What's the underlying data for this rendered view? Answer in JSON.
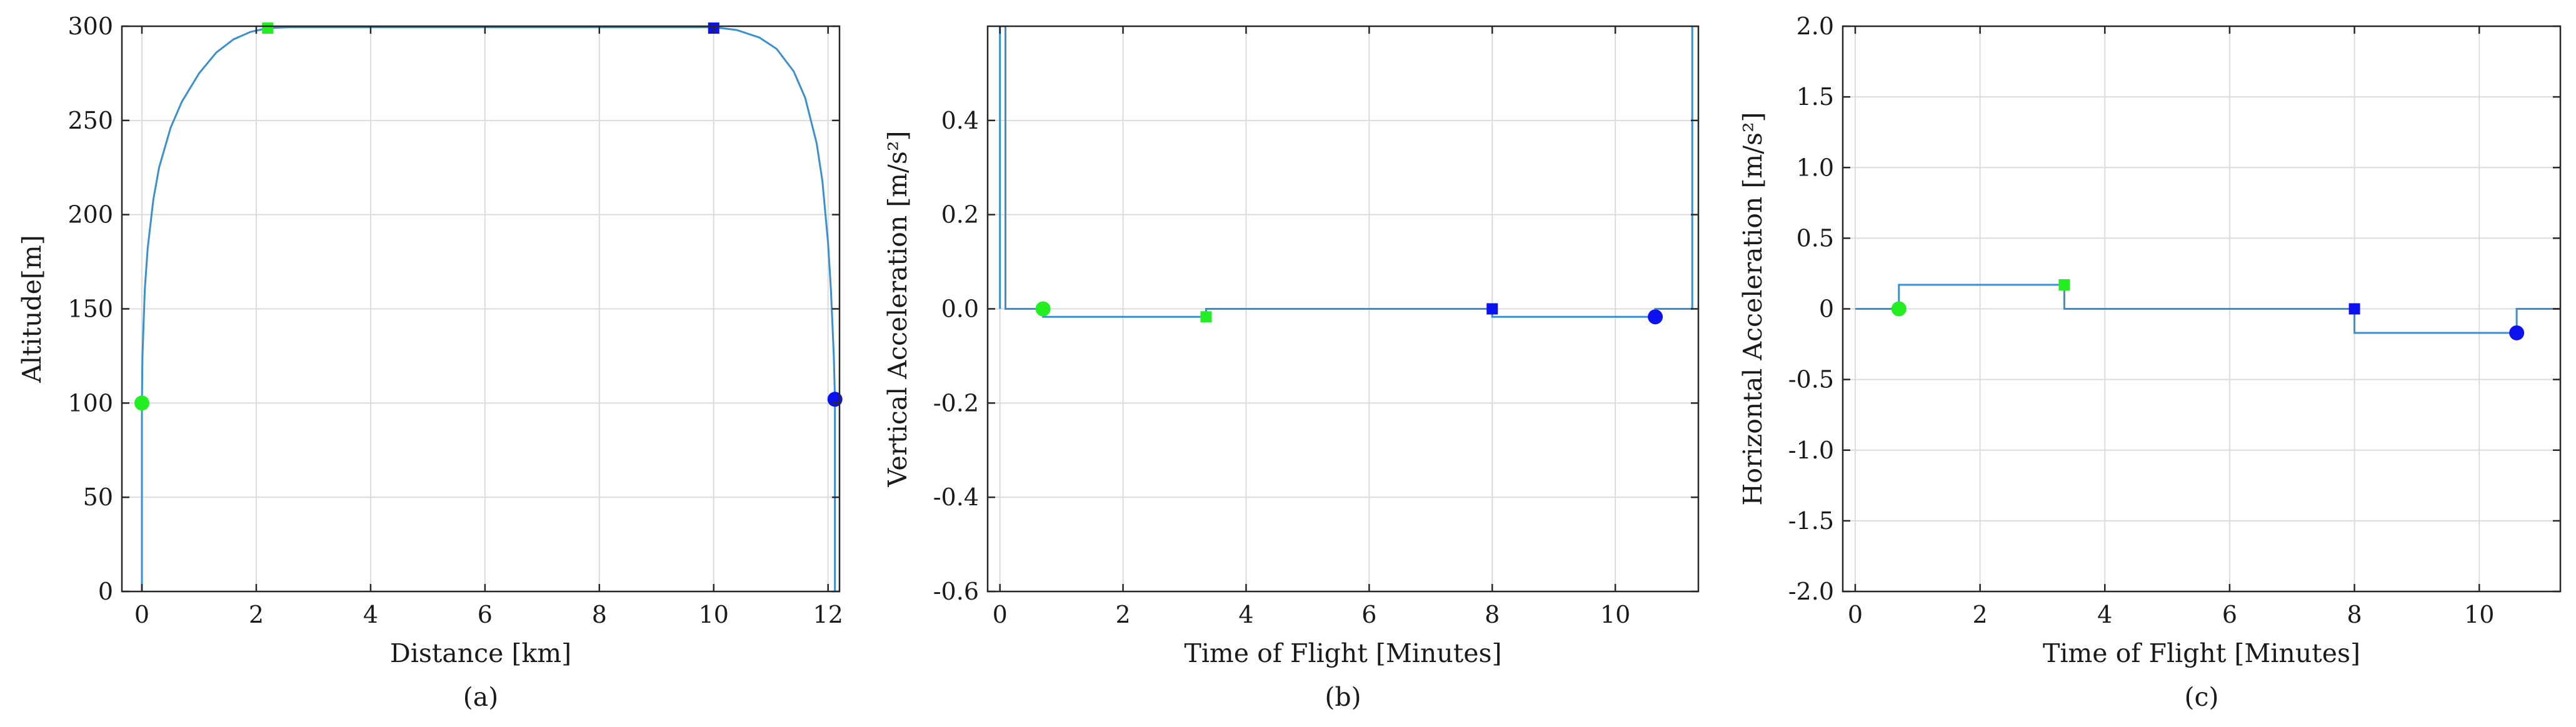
{
  "colors": {
    "curve": "#3a8fd0",
    "start_marker": "#22ee22",
    "end_marker": "#0b12ee",
    "grid": "#dcdcdc",
    "frame": "#262626"
  },
  "chart_data": [
    {
      "type": "line",
      "caption": "(a)",
      "xlabel": "Distance [km]",
      "ylabel": "Altitude[m]",
      "xlim": [
        -0.35,
        12.2
      ],
      "ylim": [
        0,
        300
      ],
      "xticks": [
        0,
        2,
        4,
        6,
        8,
        10,
        12
      ],
      "yticks": [
        0,
        50,
        100,
        150,
        200,
        250,
        300
      ],
      "xtick_labels": [
        "0",
        "2",
        "4",
        "6",
        "8",
        "10",
        "12"
      ],
      "ytick_labels": [
        "0",
        "50",
        "100",
        "150",
        "200",
        "250",
        "300"
      ],
      "grid": true,
      "series": [
        {
          "x": [
            0,
            0,
            0.01,
            0.05,
            0.1,
            0.2,
            0.3,
            0.5,
            0.7,
            1.0,
            1.3,
            1.6,
            1.9,
            2.2,
            2.6,
            3.0,
            4.0,
            5.0,
            6.0,
            7.0,
            8.0,
            9.0,
            9.5,
            10.0,
            10.4,
            10.8,
            11.1,
            11.4,
            11.6,
            11.8,
            11.9,
            12.0,
            12.05,
            12.1,
            12.12,
            12.12
          ],
          "y": [
            0,
            100,
            125,
            160,
            182,
            208,
            225,
            246,
            260,
            275,
            286,
            293,
            297,
            299,
            299.5,
            299.5,
            299.5,
            299.5,
            299.5,
            299.5,
            299.5,
            299.5,
            299.5,
            299.5,
            298,
            294,
            288,
            276,
            262,
            238,
            218,
            185,
            160,
            125,
            102,
            0
          ]
        }
      ],
      "markers": [
        {
          "shape": "circle",
          "color": "start",
          "x": 0,
          "y": 100
        },
        {
          "shape": "square",
          "color": "start",
          "x": 2.2,
          "y": 299
        },
        {
          "shape": "square",
          "color": "end",
          "x": 10,
          "y": 299
        },
        {
          "shape": "circle",
          "color": "end",
          "x": 12.12,
          "y": 102
        }
      ]
    },
    {
      "type": "line",
      "caption": "(b)",
      "xlabel": "Time of Flight [Minutes]",
      "ylabel": "Vertical Acceleration [m/s²]",
      "xlim": [
        -0.2,
        11.35
      ],
      "ylim": [
        -0.6,
        0.6
      ],
      "xticks": [
        0,
        2,
        4,
        6,
        8,
        10
      ],
      "yticks": [
        -0.6,
        -0.4,
        -0.2,
        0,
        0.2,
        0.4
      ],
      "xtick_labels": [
        "0",
        "2",
        "4",
        "6",
        "8",
        "10"
      ],
      "ytick_labels": [
        "-0.6",
        "-0.4",
        "-0.2",
        "0.0",
        "0.2",
        "0.4"
      ],
      "grid": true,
      "series": [
        {
          "x": [
            0,
            0,
            0.09,
            0.09,
            0.7,
            0.7,
            3.35,
            3.35,
            8.0,
            8.0,
            10.65,
            10.65,
            11.25,
            11.25,
            11.35
          ],
          "y": [
            0,
            0.6,
            0.6,
            0,
            0,
            -0.017,
            -0.017,
            0,
            0,
            -0.017,
            -0.017,
            0,
            0,
            0.6,
            0.6
          ]
        }
      ],
      "markers": [
        {
          "shape": "circle",
          "color": "start",
          "x": 0.7,
          "y": 0
        },
        {
          "shape": "square",
          "color": "start",
          "x": 3.35,
          "y": -0.017
        },
        {
          "shape": "square",
          "color": "end",
          "x": 8.0,
          "y": 0
        },
        {
          "shape": "circle",
          "color": "end",
          "x": 10.65,
          "y": -0.017
        }
      ]
    },
    {
      "type": "line",
      "caption": "(c)",
      "xlabel": "Time of Flight [Minutes]",
      "ylabel": "Horizontal Acceleration [m/s²]",
      "xlim": [
        -0.2,
        11.3
      ],
      "ylim": [
        -2,
        2
      ],
      "xticks": [
        0,
        2,
        4,
        6,
        8,
        10
      ],
      "yticks": [
        -2,
        -1.5,
        -1,
        -0.5,
        0,
        0.5,
        1,
        1.5,
        2
      ],
      "xtick_labels": [
        "0",
        "2",
        "4",
        "6",
        "8",
        "10"
      ],
      "ytick_labels": [
        "-2.0",
        "-1.5",
        "-1.0",
        "-0.5",
        "0",
        "0.5",
        "1.0",
        "1.5",
        "2.0"
      ],
      "grid": true,
      "series": [
        {
          "x": [
            0,
            0.7,
            0.7,
            3.35,
            3.35,
            8.0,
            8.0,
            10.6,
            10.6,
            11.3
          ],
          "y": [
            0,
            0,
            0.17,
            0.17,
            0,
            0,
            -0.17,
            -0.17,
            0,
            0
          ]
        }
      ],
      "markers": [
        {
          "shape": "circle",
          "color": "start",
          "x": 0.7,
          "y": 0
        },
        {
          "shape": "square",
          "color": "start",
          "x": 3.35,
          "y": 0.17
        },
        {
          "shape": "square",
          "color": "end",
          "x": 8.0,
          "y": 0
        },
        {
          "shape": "circle",
          "color": "end",
          "x": 10.6,
          "y": -0.17
        }
      ]
    }
  ]
}
